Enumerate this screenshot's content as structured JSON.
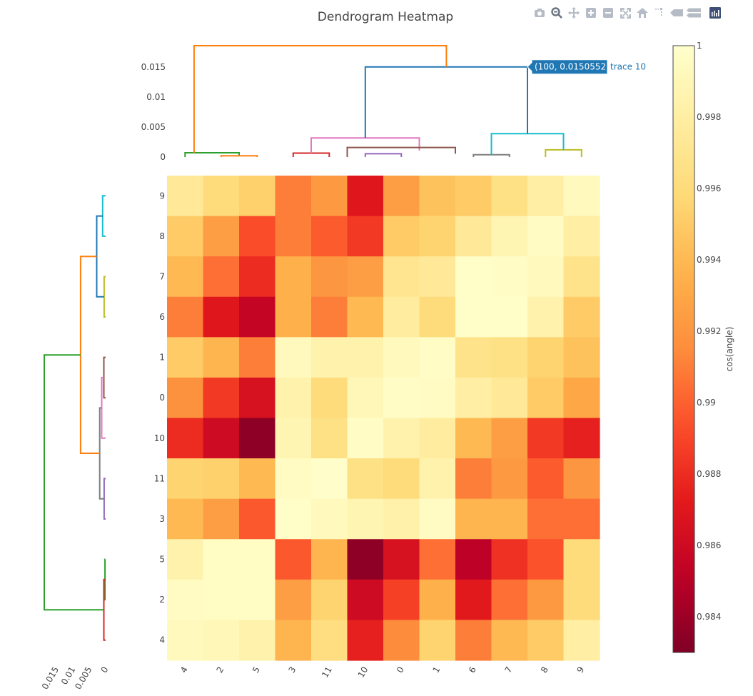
{
  "toolbar": {
    "buttons": [
      {
        "name": "camera-icon",
        "glyph": "camera"
      },
      {
        "name": "zoom-icon",
        "glyph": "zoom"
      },
      {
        "name": "pan-icon",
        "glyph": "pan"
      },
      {
        "name": "zoom-in-icon",
        "glyph": "plus"
      },
      {
        "name": "zoom-out-icon",
        "glyph": "minus"
      },
      {
        "name": "autoscale-icon",
        "glyph": "autoscale"
      },
      {
        "name": "reset-axes-icon",
        "glyph": "home"
      },
      {
        "name": "spike-lines-icon",
        "glyph": "spike"
      },
      {
        "name": "hover-closest-icon",
        "glyph": "hover-closest"
      },
      {
        "name": "hover-compare-icon",
        "glyph": "hover-compare"
      }
    ],
    "logo": {
      "name": "plotly-logo-icon",
      "color": "#3f4f75"
    }
  },
  "chart_data": {
    "type": "heatmap",
    "title": "Dendrogram Heatmap",
    "x_labels": [
      "4",
      "2",
      "5",
      "3",
      "11",
      "10",
      "0",
      "1",
      "6",
      "7",
      "8",
      "9"
    ],
    "y_labels": [
      "9",
      "8",
      "7",
      "6",
      "1",
      "0",
      "10",
      "11",
      "3",
      "5",
      "2",
      "4"
    ],
    "z": [
      [
        0.9975,
        0.996,
        0.9953,
        0.991,
        0.9922,
        0.987,
        0.9925,
        0.9945,
        0.995,
        0.9965,
        0.998,
        0.9993
      ],
      [
        0.995,
        0.9925,
        0.9893,
        0.991,
        0.9898,
        0.9885,
        0.995,
        0.9955,
        0.9975,
        0.9988,
        0.9995,
        0.998
      ],
      [
        0.994,
        0.9905,
        0.988,
        0.9935,
        0.992,
        0.9925,
        0.997,
        0.9975,
        0.9998,
        0.9997,
        0.9993,
        0.9968
      ],
      [
        0.991,
        0.987,
        0.9855,
        0.9935,
        0.991,
        0.994,
        0.9978,
        0.996,
        0.9998,
        0.9998,
        0.9985,
        0.995
      ],
      [
        0.995,
        0.9938,
        0.991,
        0.9993,
        0.9985,
        0.9985,
        0.9993,
        0.9997,
        0.9968,
        0.9965,
        0.9955,
        0.9945
      ],
      [
        0.9918,
        0.9885,
        0.9865,
        0.9985,
        0.996,
        0.999,
        0.9997,
        0.9995,
        0.998,
        0.9975,
        0.995,
        0.993
      ],
      [
        0.988,
        0.986,
        0.9835,
        0.9988,
        0.9965,
        0.9997,
        0.9985,
        0.9978,
        0.994,
        0.9925,
        0.9885,
        0.9875
      ],
      [
        0.9955,
        0.9953,
        0.994,
        0.9995,
        0.9999,
        0.9965,
        0.996,
        0.9985,
        0.991,
        0.9922,
        0.9898,
        0.992
      ],
      [
        0.994,
        0.9925,
        0.9897,
        0.9998,
        0.9993,
        0.9988,
        0.9983,
        0.9995,
        0.9938,
        0.9938,
        0.9905,
        0.9905
      ],
      [
        0.9985,
        0.9996,
        0.9996,
        0.9897,
        0.9938,
        0.9835,
        0.9865,
        0.9905,
        0.9852,
        0.9882,
        0.9895,
        0.996
      ],
      [
        0.9995,
        0.9996,
        0.9996,
        0.9925,
        0.9955,
        0.986,
        0.9888,
        0.9935,
        0.9872,
        0.9905,
        0.9922,
        0.996
      ],
      [
        0.9993,
        0.999,
        0.9985,
        0.9938,
        0.9963,
        0.9875,
        0.9915,
        0.9955,
        0.991,
        0.994,
        0.995,
        0.998
      ]
    ],
    "zmin": 0.983,
    "zmax": 1.0,
    "colorscale": "YlOrRd",
    "colorbar": {
      "title": "cos(angle)",
      "ticks": [
        1,
        0.998,
        0.996,
        0.994,
        0.992,
        0.99,
        0.988,
        0.986,
        0.984
      ],
      "tick_labels": [
        "1",
        "0.998",
        "0.996",
        "0.994",
        "0.992",
        "0.99",
        "0.988",
        "0.986",
        "0.984"
      ]
    },
    "top_dendrogram": {
      "leaf_positions": [
        5,
        15,
        25,
        35,
        45,
        55,
        65,
        75,
        85,
        95,
        105,
        115
      ],
      "x_range": [
        0,
        120
      ],
      "y_range": [
        0,
        0.0186
      ],
      "y_ticks": [
        0,
        0.005,
        0.01,
        0.015
      ],
      "y_tick_labels": [
        "0",
        "0.005",
        "0.01",
        "0.015"
      ],
      "links": [
        {
          "x": [
            5,
            5,
            20,
            20
          ],
          "y": [
            0,
            0.00072,
            0.00072,
            0.00022
          ],
          "color": "#2ca02c"
        },
        {
          "x": [
            15,
            15,
            25,
            25
          ],
          "y": [
            0,
            0.00022,
            0.00022,
            0
          ],
          "color": "#ff7f0e"
        },
        {
          "x": [
            35,
            35,
            45,
            45
          ],
          "y": [
            0,
            0.00065,
            0.00065,
            0
          ],
          "color": "#d62728"
        },
        {
          "x": [
            40,
            40,
            70,
            70
          ],
          "y": [
            0.00065,
            0.0032,
            0.0032,
            0.00108
          ],
          "color": "#e377c2"
        },
        {
          "x": [
            55,
            55,
            65,
            65
          ],
          "y": [
            0,
            0.00055,
            0.00055,
            0
          ],
          "color": "#9467bd"
        },
        {
          "x": [
            50,
            50,
            80,
            80
          ],
          "y": [
            0,
            0.0016,
            0.0016,
            0.00055
          ],
          "color": "#8c564b"
        },
        {
          "x": [
            85,
            85,
            95,
            95
          ],
          "y": [
            0,
            0.00038,
            0.00038,
            0
          ],
          "color": "#7f7f7f"
        },
        {
          "x": [
            105,
            105,
            115,
            115
          ],
          "y": [
            0,
            0.0012,
            0.0012,
            0
          ],
          "color": "#bcbd22"
        },
        {
          "x": [
            90,
            90,
            110,
            110
          ],
          "y": [
            0.00038,
            0.0039,
            0.0039,
            0.0012
          ],
          "color": "#17becf"
        },
        {
          "x": [
            55,
            55,
            100,
            100
          ],
          "y": [
            0.0032,
            0.0150552,
            0.0150552,
            0.0039
          ],
          "color": "#1f77b4"
        },
        {
          "x": [
            7.5,
            7.5,
            77.5,
            77.5
          ],
          "y": [
            0.00072,
            0.0186,
            0.0186,
            0.0150552
          ],
          "color": "#ff7f0e"
        }
      ]
    },
    "left_dendrogram": {
      "leaf_positions": [
        5,
        15,
        25,
        35,
        45,
        55,
        65,
        75,
        85,
        95,
        105,
        115
      ],
      "y_range": [
        0,
        120
      ],
      "x_range": [
        0,
        0.0186
      ],
      "x_ticks": [
        0,
        0.005,
        0.01,
        0.015
      ],
      "x_tick_labels": [
        "0",
        "0.005",
        "0.01",
        "0.015"
      ],
      "links": [
        {
          "y": [
            5,
            5,
            15,
            15
          ],
          "x": [
            0,
            0.0009,
            0.0009,
            0
          ],
          "color": "#17becf"
        },
        {
          "y": [
            25,
            25,
            35,
            35
          ],
          "x": [
            0,
            0.00045,
            0.00045,
            0
          ],
          "color": "#bcbd22"
        },
        {
          "y": [
            10,
            10,
            30,
            30
          ],
          "x": [
            0.0009,
            0.0027,
            0.0027,
            0.00045
          ],
          "color": "#1f77b4"
        },
        {
          "y": [
            45,
            45,
            55,
            55
          ],
          "x": [
            0,
            0.00055,
            0.00055,
            0
          ],
          "color": "#8c564b"
        },
        {
          "y": [
            50,
            50,
            65,
            65
          ],
          "x": [
            0.00055,
            0.0012,
            0.0012,
            0
          ],
          "color": "#e377c2"
        },
        {
          "y": [
            75,
            75,
            85,
            85
          ],
          "x": [
            0,
            0.00045,
            0.00045,
            0
          ],
          "color": "#9467bd"
        },
        {
          "y": [
            57.5,
            57.5,
            80,
            80
          ],
          "x": [
            0.0012,
            0.0018,
            0.0018,
            0.00045
          ],
          "color": "#7f7f7f"
        },
        {
          "y": [
            20,
            20,
            68.75,
            68.75
          ],
          "x": [
            0.0027,
            0.0076,
            0.0076,
            0.0018
          ],
          "color": "#ff7f0e"
        },
        {
          "y": [
            95,
            95,
            105,
            105
          ],
          "x": [
            0.0001,
            0.0002,
            0.0002,
            0
          ],
          "color": "#2ca02c"
        },
        {
          "y": [
            100,
            100,
            115,
            115
          ],
          "x": [
            0,
            0.00055,
            0.00055,
            0
          ],
          "color": "#d62728"
        },
        {
          "y": [
            44.4,
            44.4,
            107.5,
            107.5
          ],
          "x": [
            0.0076,
            0.0186,
            0.0186,
            0.00055
          ],
          "color": "#2ca02c"
        }
      ]
    },
    "hover": {
      "label": "(100, 0.0150552)",
      "trace": "trace 10",
      "x": 100,
      "y": 0.0150552,
      "color": "#1f77b4"
    }
  }
}
